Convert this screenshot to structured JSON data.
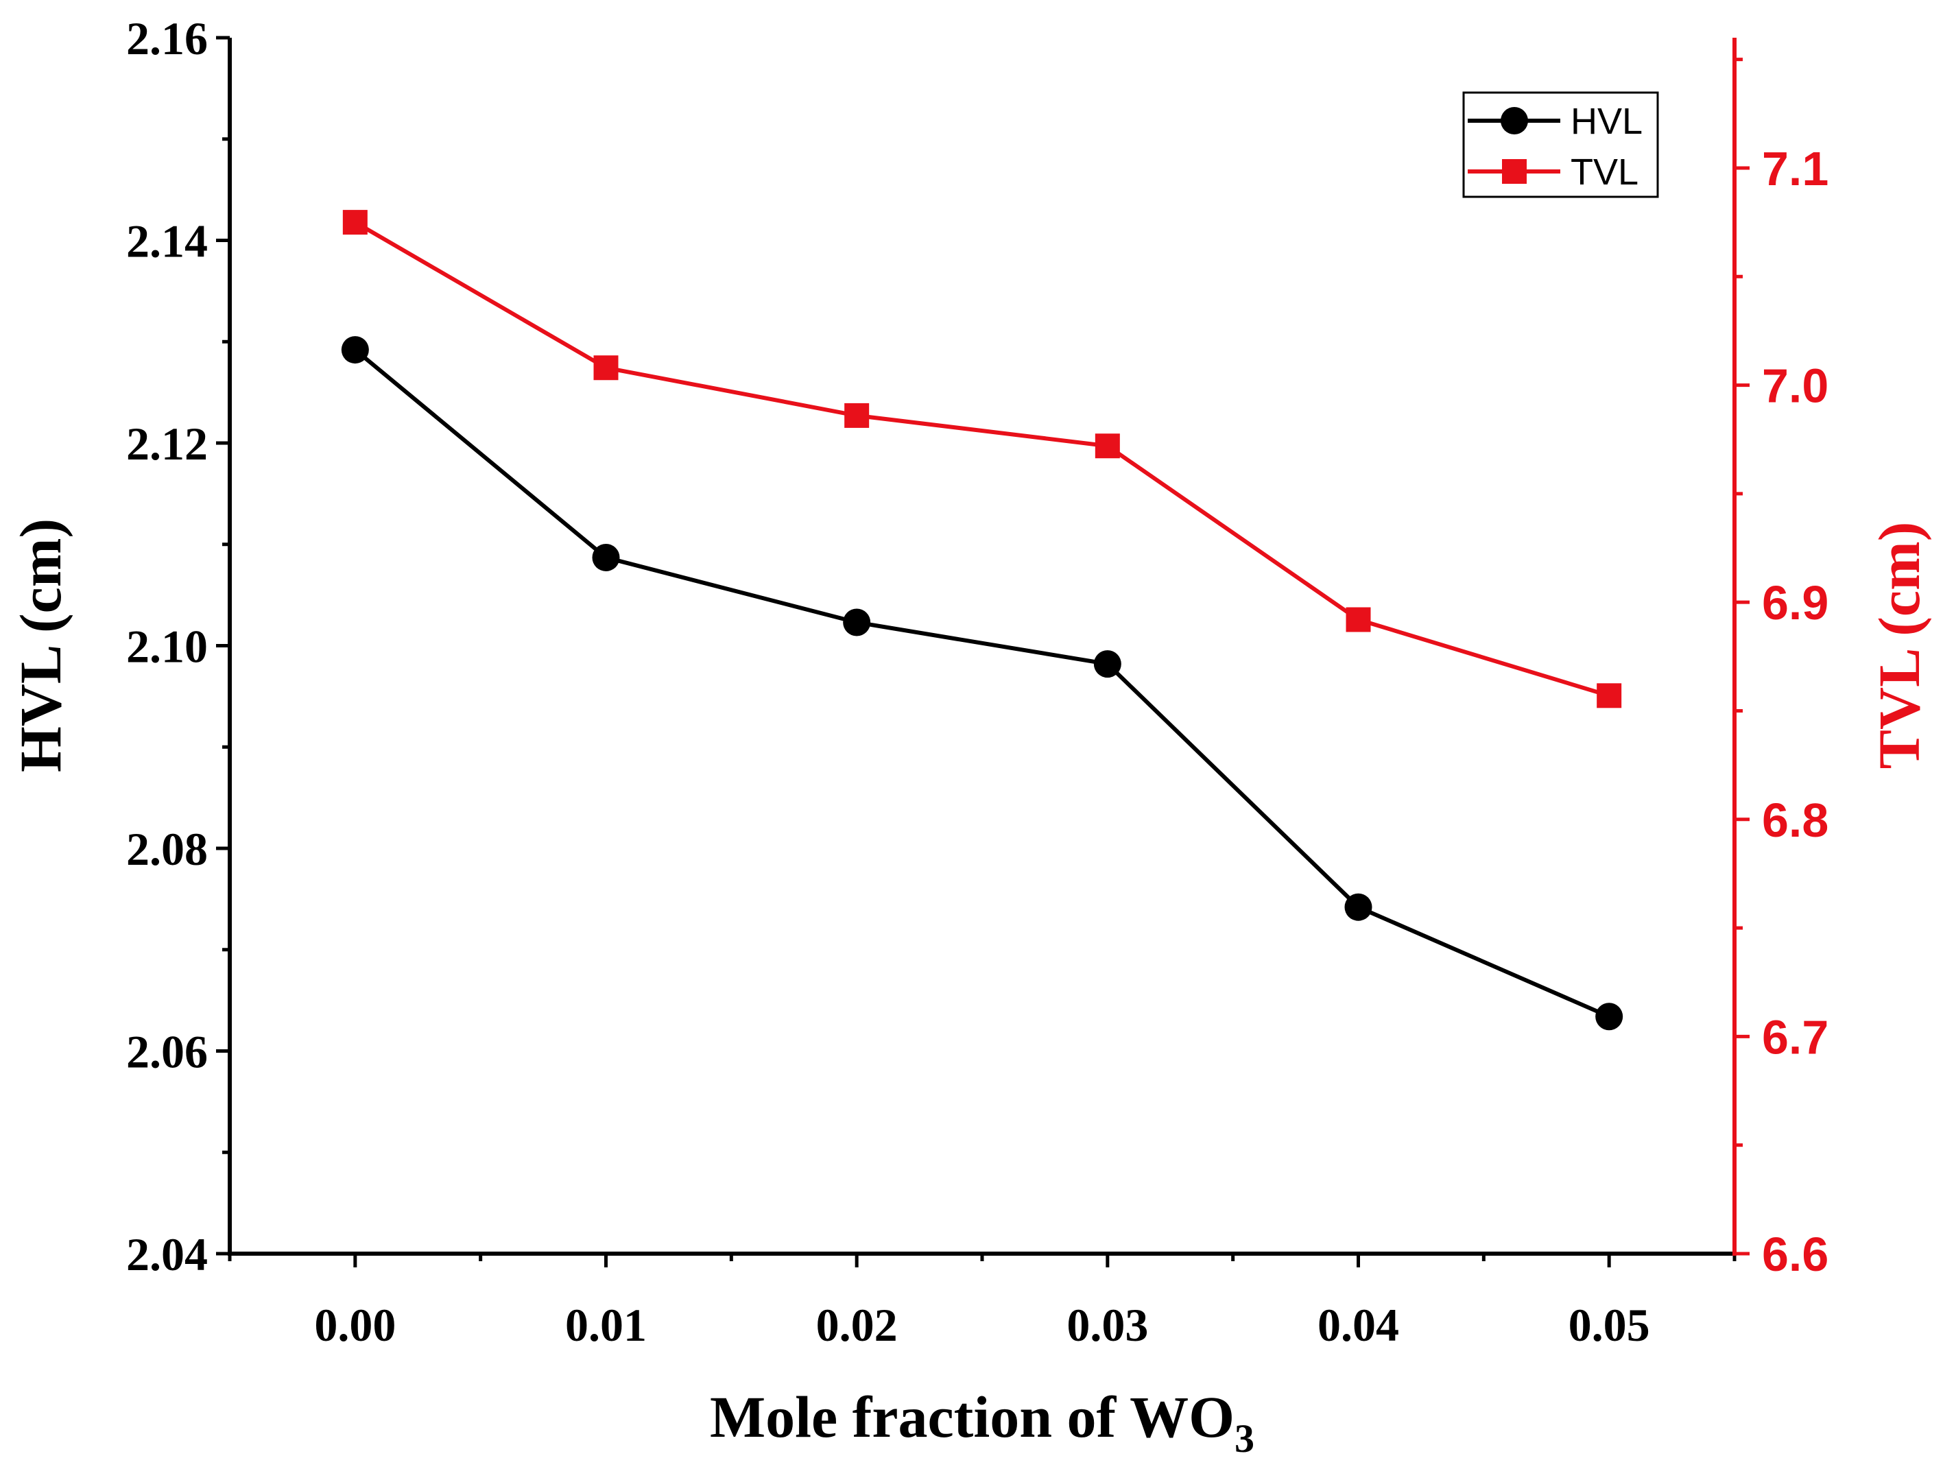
{
  "chart_data": {
    "type": "line",
    "x": [
      0.0,
      0.01,
      0.02,
      0.03,
      0.04,
      0.05
    ],
    "x_tick_labels": [
      "0.00",
      "0.01",
      "0.02",
      "0.03",
      "0.04",
      "0.05"
    ],
    "xlim": [
      -0.005,
      0.055
    ],
    "xlabel": {
      "main": "Mole fraction of WO",
      "subscript": "3"
    },
    "left_axis": {
      "label": "HVL (cm)",
      "ylim": [
        2.04,
        2.16
      ],
      "ticks": [
        2.04,
        2.06,
        2.08,
        2.1,
        2.12,
        2.14,
        2.16
      ],
      "tick_labels": [
        "2.04",
        "2.06",
        "2.08",
        "2.10",
        "2.12",
        "2.14",
        "2.16"
      ],
      "color": "#000000"
    },
    "right_axis": {
      "label": "TVL (cm)",
      "ylim": [
        6.6,
        7.16
      ],
      "ticks": [
        6.6,
        6.7,
        6.8,
        6.9,
        7.0,
        7.1
      ],
      "tick_labels": [
        "6.6",
        "6.7",
        "6.8",
        "6.9",
        "7.0",
        "7.1"
      ],
      "color": "#e8101a"
    },
    "series": [
      {
        "name": "HVL",
        "axis": "left",
        "marker": "circle",
        "color": "#000000",
        "values": [
          2.1292,
          2.1087,
          2.1023,
          2.0982,
          2.0742,
          2.0634
        ]
      },
      {
        "name": "TVL",
        "axis": "right",
        "marker": "square",
        "color": "#e8101a",
        "values": [
          7.075,
          7.008,
          6.986,
          6.972,
          6.892,
          6.857
        ]
      }
    ],
    "legend": {
      "position": "top-right",
      "entries": [
        "HVL",
        "TVL"
      ]
    }
  }
}
